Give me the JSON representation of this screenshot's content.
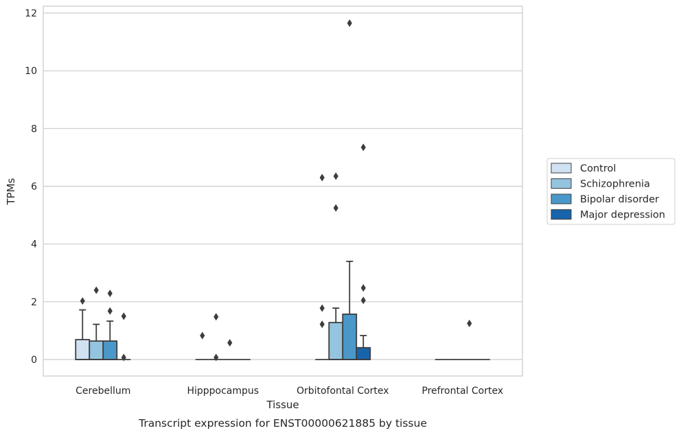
{
  "chart_data": {
    "type": "box",
    "title": "",
    "caption": "Transcript expression for ENST00000621885 by tissue",
    "xlabel": "Tissue",
    "ylabel": "TPMs",
    "ylim": [
      -0.55,
      12.2
    ],
    "yticks": [
      0,
      2,
      4,
      6,
      8,
      10,
      12
    ],
    "grid": "horizontal",
    "legend_position": "right",
    "categories": [
      "Cerebellum",
      "Hipppocampus",
      "Orbitofontal Cortex",
      "Prefrontal Cortex"
    ],
    "series": [
      {
        "name": "Control",
        "color": "#d0e1f2",
        "boxes": [
          {
            "q1": 0,
            "median": 0,
            "q3": 0.69,
            "whisker_low": 0,
            "whisker_high": 1.72,
            "outliers": [
              2.03
            ]
          },
          {
            "q1": 0,
            "median": 0,
            "q3": 0,
            "whisker_low": 0,
            "whisker_high": 0,
            "outliers": [
              0.83
            ]
          },
          {
            "q1": 0,
            "median": 0,
            "q3": 0,
            "whisker_low": 0,
            "whisker_high": 0,
            "outliers": [
              6.3,
              1.78,
              1.22
            ]
          },
          {
            "q1": 0,
            "median": 0,
            "q3": 0,
            "whisker_low": 0,
            "whisker_high": 0,
            "outliers": []
          }
        ]
      },
      {
        "name": "Schizophrenia",
        "color": "#94c4df",
        "boxes": [
          {
            "q1": 0,
            "median": 0,
            "q3": 0.64,
            "whisker_low": 0,
            "whisker_high": 1.22,
            "outliers": [
              2.4
            ]
          },
          {
            "q1": 0,
            "median": 0,
            "q3": 0,
            "whisker_low": 0,
            "whisker_high": 0,
            "outliers": [
              1.48,
              0.07
            ]
          },
          {
            "q1": 0,
            "median": 0,
            "q3": 1.28,
            "whisker_low": 0,
            "whisker_high": 1.78,
            "outliers": [
              6.35,
              5.25
            ]
          },
          {
            "q1": 0,
            "median": 0,
            "q3": 0,
            "whisker_low": 0,
            "whisker_high": 0,
            "outliers": []
          }
        ]
      },
      {
        "name": "Bipolar disorder",
        "color": "#4a98c9",
        "boxes": [
          {
            "q1": 0,
            "median": 0,
            "q3": 0.64,
            "whisker_low": 0,
            "whisker_high": 1.33,
            "outliers": [
              2.29,
              1.68
            ]
          },
          {
            "q1": 0,
            "median": 0,
            "q3": 0,
            "whisker_low": 0,
            "whisker_high": 0,
            "outliers": [
              0.58
            ]
          },
          {
            "q1": 0,
            "median": 0,
            "q3": 1.57,
            "whisker_low": 0,
            "whisker_high": 3.4,
            "outliers": [
              11.65
            ]
          },
          {
            "q1": 0,
            "median": 0,
            "q3": 0,
            "whisker_low": 0,
            "whisker_high": 0,
            "outliers": [
              1.25
            ]
          }
        ]
      },
      {
        "name": "Major depression",
        "color": "#1764ab",
        "boxes": [
          {
            "q1": 0,
            "median": 0,
            "q3": 0,
            "whisker_low": 0,
            "whisker_high": 0,
            "outliers": [
              1.5,
              0.07
            ]
          },
          {
            "q1": 0,
            "median": 0,
            "q3": 0,
            "whisker_low": 0,
            "whisker_high": 0,
            "outliers": []
          },
          {
            "q1": 0,
            "median": 0,
            "q3": 0.41,
            "whisker_low": 0,
            "whisker_high": 0.83,
            "outliers": [
              7.35,
              2.48,
              2.05
            ]
          },
          {
            "q1": 0,
            "median": 0,
            "q3": 0,
            "whisker_low": 0,
            "whisker_high": 0,
            "outliers": []
          }
        ]
      }
    ]
  }
}
